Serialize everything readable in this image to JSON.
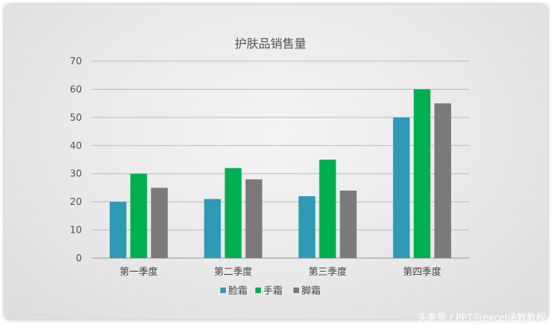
{
  "chart_data": {
    "type": "bar",
    "title": "护肤品销售量",
    "categories": [
      "第一季度",
      "第二季度",
      "第三季度",
      "第四季度"
    ],
    "series": [
      {
        "name": "脸霜",
        "values": [
          20,
          21,
          22,
          50
        ],
        "color": "#2e9ab5"
      },
      {
        "name": "手霜",
        "values": [
          30,
          32,
          35,
          60
        ],
        "color": "#00b050"
      },
      {
        "name": "脚霜",
        "values": [
          25,
          28,
          24,
          55
        ],
        "color": "#7a7a7a"
      }
    ],
    "ylim": [
      0,
      70
    ],
    "yticks": [
      0,
      10,
      20,
      30,
      40,
      50,
      60,
      70
    ],
    "grid": true,
    "legend": "bottom"
  },
  "watermark": "头条号 / PPT与excel函数教程"
}
